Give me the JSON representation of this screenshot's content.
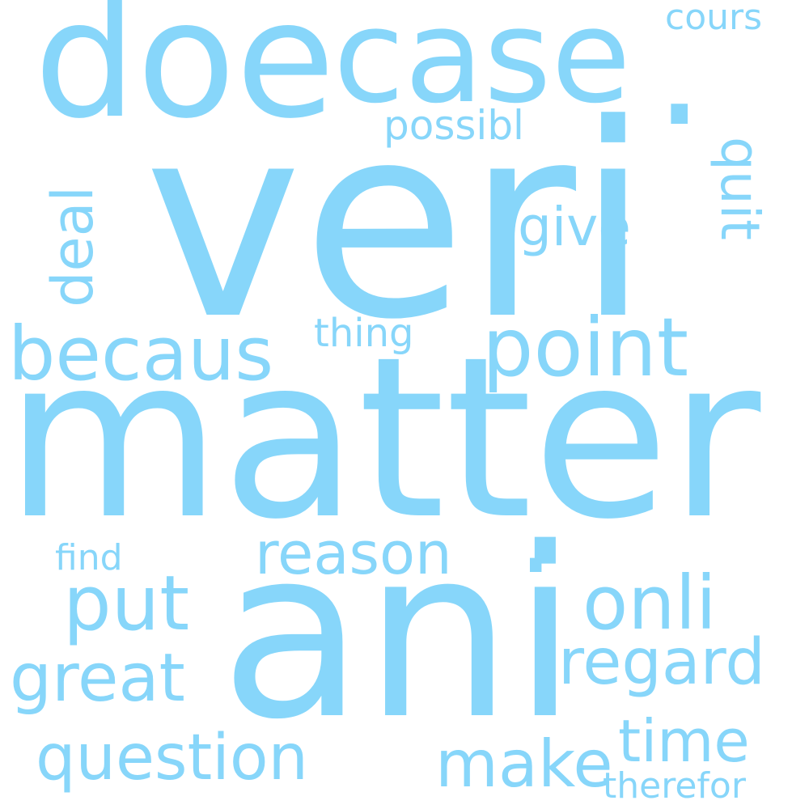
{
  "colors": {
    "word": "#87d6fa",
    "background": "#ffffff"
  },
  "words": {
    "veri": "veri",
    "matter": "matter",
    "ani": "ani",
    "doe": "doe",
    "case": "case",
    "point": "point",
    "becaus": "becaus",
    "reason": "reason",
    "onli": "onli",
    "put": "put",
    "regard": "regard",
    "great": "great",
    "question": "question",
    "make": "make",
    "time": "time",
    "give": "give",
    "possibl": "possibl",
    "thing": "thing",
    "deal": "deal",
    "quit": "quit",
    "cours": "cours",
    "find": "find",
    "therefor": "therefor",
    "dot1": ".",
    "dot2": "."
  }
}
